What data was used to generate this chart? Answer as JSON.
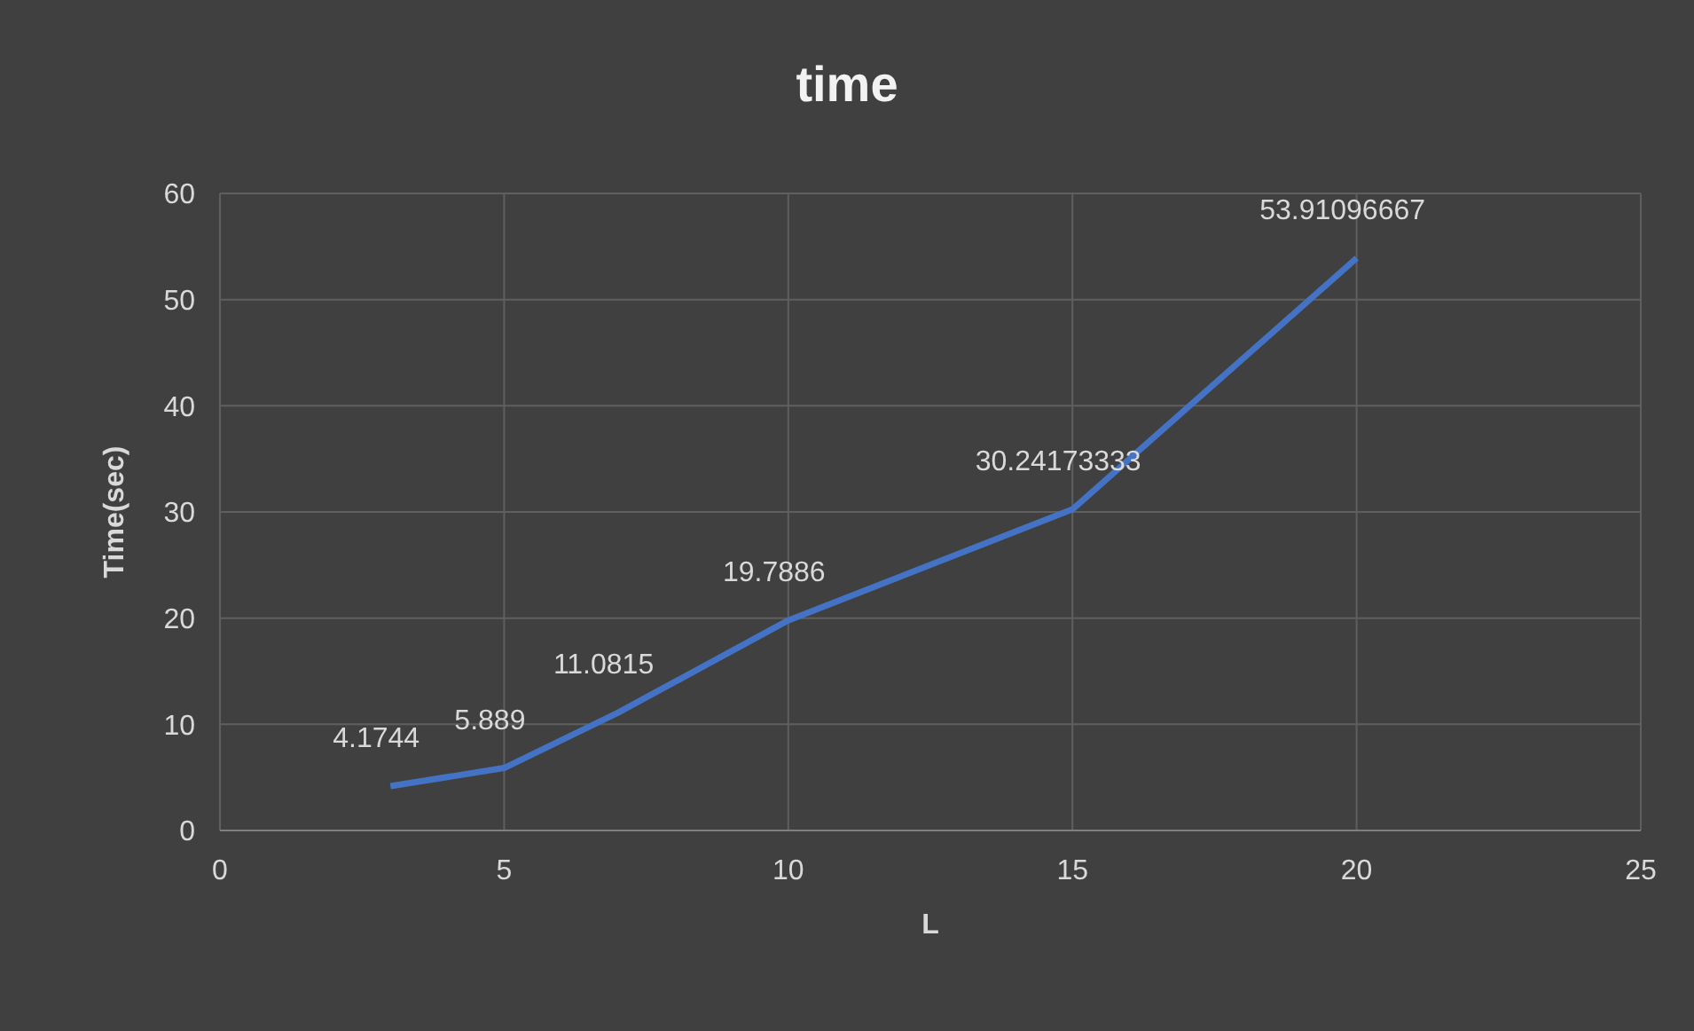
{
  "chart_data": {
    "type": "line",
    "title": "time",
    "xlabel": "L",
    "ylabel": "Time(sec)",
    "x": [
      3,
      5,
      7,
      10,
      15,
      20
    ],
    "values": [
      4.1744,
      5.889,
      11.0815,
      19.7886,
      30.24173333,
      53.91096667
    ],
    "color": "#4472c4",
    "xlim": [
      0,
      25
    ],
    "xticks": [
      0,
      5,
      10,
      15,
      20,
      25
    ],
    "ylim": [
      0,
      60
    ],
    "yticks": [
      0,
      10,
      20,
      30,
      40,
      50,
      60
    ],
    "grid": true,
    "data_labels": true,
    "marker": "none"
  }
}
